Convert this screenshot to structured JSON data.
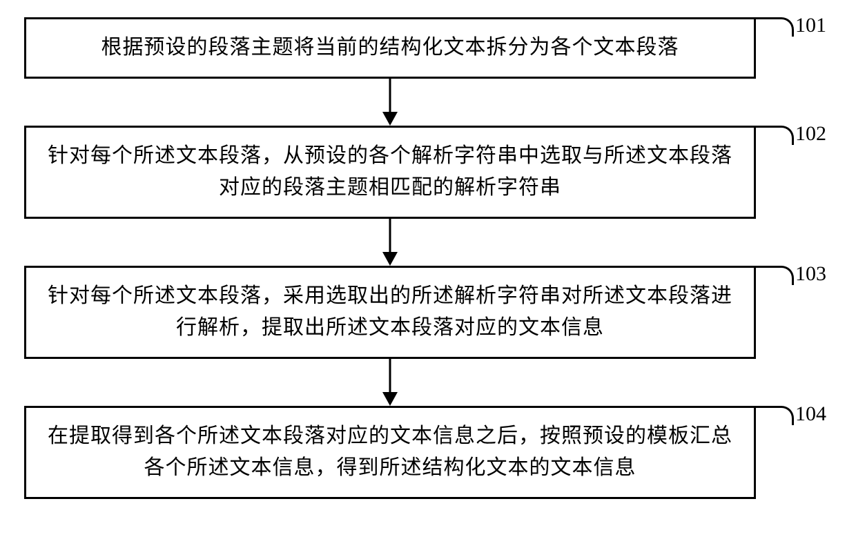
{
  "flowchart": {
    "type": "flowchart",
    "background_color": "#ffffff",
    "box_border_color": "#000000",
    "box_border_width": 3,
    "box_background": "#ffffff",
    "text_color": "#000000",
    "font_size": 30,
    "arrow_color": "#000000",
    "arrow_line_width": 3,
    "nodes": [
      {
        "id": "step1",
        "label": "101",
        "text": "根据预设的段落主题将当前的结构化文本拆分为各个文本段落",
        "lines": 1
      },
      {
        "id": "step2",
        "label": "102",
        "text": "针对每个所述文本段落，从预设的各个解析字符串中选取与所述文本段落对应的段落主题相匹配的解析字符串",
        "lines": 2
      },
      {
        "id": "step3",
        "label": "103",
        "text": "针对每个所述文本段落，采用选取出的所述解析字符串对所述文本段落进行解析，提取出所述文本段落对应的文本信息",
        "lines": 2
      },
      {
        "id": "step4",
        "label": "104",
        "text": "在提取得到各个所述文本段落对应的文本信息之后，按照预设的模板汇总各个所述文本信息，得到所述结构化文本的文本信息",
        "lines": 2
      }
    ],
    "edges": [
      {
        "from": "step1",
        "to": "step2"
      },
      {
        "from": "step2",
        "to": "step3"
      },
      {
        "from": "step3",
        "to": "step4"
      }
    ]
  }
}
